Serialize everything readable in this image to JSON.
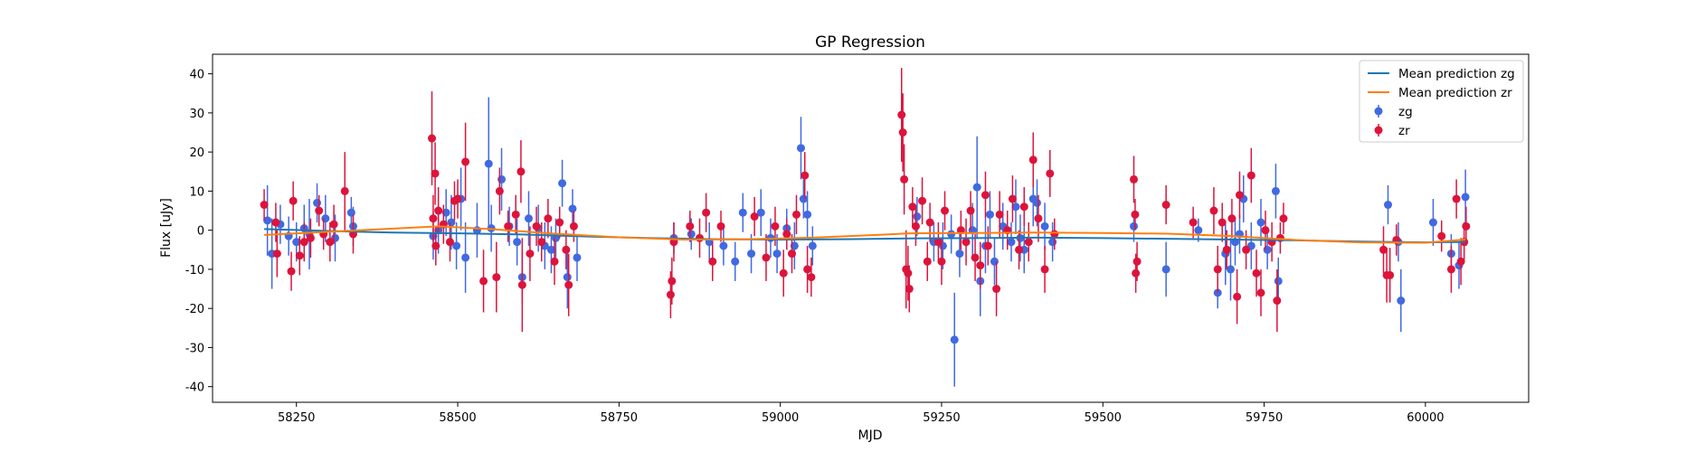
{
  "chart_data": {
    "type": "scatter",
    "title": "GP Regression",
    "xlabel": "MJD",
    "ylabel": "Flux [uJy]",
    "xlim": [
      58120,
      60160
    ],
    "ylim": [
      -44,
      45
    ],
    "xticks": [
      58250,
      58500,
      58750,
      59000,
      59250,
      59500,
      59750,
      60000
    ],
    "yticks": [
      -40,
      -30,
      -20,
      -10,
      0,
      10,
      20,
      30,
      40
    ],
    "grid": false,
    "legend_position": "top-right",
    "legend": [
      {
        "label": "Mean prediction zg",
        "kind": "line",
        "color": "#1f77b4"
      },
      {
        "label": "Mean prediction zr",
        "kind": "line",
        "color": "#ff7f0e"
      },
      {
        "label": "zg",
        "kind": "errorbar",
        "color": "#4169e1"
      },
      {
        "label": "zr",
        "kind": "errorbar",
        "color": "#dc143c"
      }
    ],
    "lines": [
      {
        "name": "Mean prediction zg",
        "color": "#1f77b4",
        "x": [
          58200,
          58300,
          58400,
          58500,
          58600,
          58700,
          58800,
          58900,
          59000,
          59100,
          59200,
          59300,
          59400,
          59500,
          59600,
          59700,
          59800,
          59900,
          60000,
          60062
        ],
        "y": [
          0.3,
          -0.2,
          -0.6,
          -0.8,
          -1.1,
          -1.6,
          -2.0,
          -2.3,
          -2.4,
          -2.3,
          -2.1,
          -2.0,
          -1.9,
          -2.0,
          -2.2,
          -2.4,
          -2.6,
          -2.9,
          -3.1,
          -3.0
        ]
      },
      {
        "name": "Mean prediction zr",
        "color": "#ff7f0e",
        "x": [
          58200,
          58300,
          58400,
          58470,
          58550,
          58650,
          58750,
          58850,
          58950,
          59050,
          59150,
          59200,
          59300,
          59400,
          59500,
          59600,
          59700,
          59800,
          59900,
          60000,
          60062
        ],
        "y": [
          -1.2,
          -0.4,
          0.4,
          1.0,
          0.3,
          -0.9,
          -1.8,
          -2.4,
          -2.3,
          -1.9,
          -1.2,
          -0.8,
          -0.7,
          -0.6,
          -0.7,
          -0.9,
          -1.5,
          -2.5,
          -3.1,
          -3.2,
          -2.4
        ]
      }
    ],
    "series": [
      {
        "name": "zg",
        "color": "#4169e1",
        "points": [
          [
            58205,
            2.5,
            9
          ],
          [
            58212,
            -6,
            9
          ],
          [
            58225,
            1.5,
            5
          ],
          [
            58238,
            -1.5,
            5
          ],
          [
            58250,
            -3,
            5
          ],
          [
            58262,
            0.5,
            6
          ],
          [
            58270,
            -1,
            9
          ],
          [
            58282,
            7,
            5
          ],
          [
            58295,
            3,
            6
          ],
          [
            58310,
            -2,
            6
          ],
          [
            58335,
            4.5,
            4
          ],
          [
            58338,
            1,
            5
          ],
          [
            58462,
            -1.5,
            6
          ],
          [
            58470,
            0,
            6
          ],
          [
            58482,
            4.5,
            6
          ],
          [
            58490,
            2,
            7
          ],
          [
            58498,
            -4,
            6
          ],
          [
            58505,
            8,
            8
          ],
          [
            58512,
            -7,
            9
          ],
          [
            58530,
            0,
            7
          ],
          [
            58548,
            17,
            17
          ],
          [
            58552,
            0.5,
            6
          ],
          [
            58568,
            13,
            8
          ],
          [
            58580,
            1,
            5
          ],
          [
            58592,
            -3,
            6
          ],
          [
            58600,
            -12,
            7
          ],
          [
            58610,
            3,
            7
          ],
          [
            58625,
            0.5,
            6
          ],
          [
            58635,
            -4,
            6
          ],
          [
            58645,
            -5,
            6
          ],
          [
            58652,
            -2,
            5
          ],
          [
            58662,
            12,
            6
          ],
          [
            58670,
            -12,
            8
          ],
          [
            58678,
            5.5,
            5
          ],
          [
            58685,
            -7,
            6
          ],
          [
            58835,
            -2,
            4
          ],
          [
            58862,
            -1,
            4
          ],
          [
            58890,
            -3,
            5
          ],
          [
            58912,
            -4,
            5
          ],
          [
            58930,
            -8,
            5
          ],
          [
            58942,
            4.5,
            5
          ],
          [
            58955,
            -6,
            5
          ],
          [
            58970,
            4.5,
            6
          ],
          [
            58985,
            -2,
            5
          ],
          [
            58995,
            -6,
            5
          ],
          [
            59010,
            0.5,
            5
          ],
          [
            59022,
            -4,
            6
          ],
          [
            59032,
            21,
            8
          ],
          [
            59036,
            8,
            5
          ],
          [
            59042,
            4,
            6
          ],
          [
            59050,
            -4,
            5
          ],
          [
            59212,
            3.5,
            5
          ],
          [
            59238,
            -3,
            5
          ],
          [
            59252,
            -4,
            6
          ],
          [
            59265,
            -1,
            5
          ],
          [
            59270,
            -28,
            12
          ],
          [
            59278,
            -6,
            6
          ],
          [
            59298,
            0,
            7
          ],
          [
            59305,
            11,
            13
          ],
          [
            59310,
            -13,
            9
          ],
          [
            59318,
            -4,
            7
          ],
          [
            59325,
            4,
            6
          ],
          [
            59332,
            -8,
            6
          ],
          [
            59345,
            1,
            6
          ],
          [
            59358,
            -3,
            5
          ],
          [
            59365,
            6,
            7
          ],
          [
            59372,
            -2,
            6
          ],
          [
            59378,
            -5,
            6
          ],
          [
            59392,
            8,
            7
          ],
          [
            59398,
            7,
            6
          ],
          [
            59410,
            1,
            6
          ],
          [
            59422,
            -3,
            5
          ],
          [
            59548,
            1,
            4
          ],
          [
            59598,
            -10,
            7
          ],
          [
            59648,
            0,
            3
          ],
          [
            59678,
            -16,
            4
          ],
          [
            59690,
            -6,
            8
          ],
          [
            59698,
            -10,
            8
          ],
          [
            59705,
            -3,
            6
          ],
          [
            59712,
            -1,
            5
          ],
          [
            59718,
            8,
            6
          ],
          [
            59730,
            -4,
            6
          ],
          [
            59745,
            2,
            6
          ],
          [
            59755,
            -5,
            5
          ],
          [
            59768,
            10,
            7
          ],
          [
            59772,
            -13,
            6
          ],
          [
            59942,
            6.5,
            5
          ],
          [
            59958,
            -3,
            5
          ],
          [
            59962,
            -18,
            8
          ],
          [
            60012,
            2,
            6
          ],
          [
            60040,
            -6,
            5
          ],
          [
            60052,
            -9,
            6
          ],
          [
            60062,
            8.5,
            7
          ]
        ]
      },
      {
        "name": "zr",
        "color": "#dc143c",
        "points": [
          [
            58200,
            6.5,
            4
          ],
          [
            58218,
            2,
            5
          ],
          [
            58220,
            -6,
            6
          ],
          [
            58242,
            -10.5,
            5
          ],
          [
            58245,
            7.5,
            5
          ],
          [
            58255,
            -6.5,
            5
          ],
          [
            58262,
            -3,
            5
          ],
          [
            58272,
            -2,
            5
          ],
          [
            58285,
            5,
            4
          ],
          [
            58292,
            -1,
            4
          ],
          [
            58302,
            -3,
            5
          ],
          [
            58308,
            1.5,
            5
          ],
          [
            58325,
            10,
            10
          ],
          [
            58338,
            -1,
            5
          ],
          [
            58460,
            23.5,
            12
          ],
          [
            58462,
            3,
            6
          ],
          [
            58465,
            14.5,
            8
          ],
          [
            58466,
            -4,
            5
          ],
          [
            58470,
            5,
            6
          ],
          [
            58478,
            1.5,
            5
          ],
          [
            58488,
            -3,
            5
          ],
          [
            58495,
            7.5,
            5
          ],
          [
            58500,
            8,
            5
          ],
          [
            58512,
            17.5,
            10
          ],
          [
            58540,
            -13,
            8
          ],
          [
            58560,
            -12,
            9
          ],
          [
            58565,
            10,
            6
          ],
          [
            58578,
            1,
            4
          ],
          [
            58590,
            4,
            5
          ],
          [
            58598,
            15,
            8
          ],
          [
            58600,
            -14,
            12
          ],
          [
            58612,
            -6,
            7
          ],
          [
            58622,
            1,
            5
          ],
          [
            58630,
            -3,
            5
          ],
          [
            58640,
            3,
            5
          ],
          [
            58650,
            -8,
            6
          ],
          [
            58658,
            2,
            4
          ],
          [
            58668,
            -5,
            5
          ],
          [
            58672,
            -14,
            8
          ],
          [
            58680,
            1,
            4
          ],
          [
            58830,
            -16.5,
            6
          ],
          [
            58832,
            -13,
            6
          ],
          [
            58835,
            -3,
            5
          ],
          [
            58860,
            1,
            4
          ],
          [
            58875,
            -2,
            5
          ],
          [
            58885,
            4.5,
            5
          ],
          [
            58895,
            -8,
            5
          ],
          [
            58908,
            1,
            4
          ],
          [
            58960,
            3.5,
            5
          ],
          [
            58978,
            -7,
            6
          ],
          [
            58992,
            1,
            5
          ],
          [
            59005,
            -11,
            6
          ],
          [
            59010,
            -1,
            4
          ],
          [
            59018,
            -6,
            5
          ],
          [
            59025,
            4,
            5
          ],
          [
            59038,
            14,
            6
          ],
          [
            59042,
            -10,
            6
          ],
          [
            59048,
            -12,
            5
          ],
          [
            59188,
            29.5,
            12
          ],
          [
            59190,
            25,
            10
          ],
          [
            59192,
            13,
            9
          ],
          [
            59195,
            -10,
            10
          ],
          [
            59198,
            -11,
            7
          ],
          [
            59200,
            -15,
            6
          ],
          [
            59205,
            6,
            5
          ],
          [
            59210,
            1,
            5
          ],
          [
            59220,
            7.5,
            6
          ],
          [
            59228,
            -8,
            5
          ],
          [
            59232,
            2,
            5
          ],
          [
            59245,
            -3,
            5
          ],
          [
            59250,
            -8,
            6
          ],
          [
            59255,
            5,
            5
          ],
          [
            59280,
            0,
            5
          ],
          [
            59288,
            -3,
            6
          ],
          [
            59295,
            5,
            5
          ],
          [
            59302,
            -7,
            6
          ],
          [
            59310,
            -9,
            6
          ],
          [
            59318,
            9,
            6
          ],
          [
            59322,
            -4,
            5
          ],
          [
            59335,
            -15,
            7
          ],
          [
            59340,
            4,
            6
          ],
          [
            59352,
            0,
            5
          ],
          [
            59360,
            8,
            6
          ],
          [
            59370,
            -5,
            5
          ],
          [
            59378,
            6,
            5
          ],
          [
            59385,
            -3,
            5
          ],
          [
            59392,
            18,
            7
          ],
          [
            59400,
            3,
            6
          ],
          [
            59410,
            -10,
            6
          ],
          [
            59418,
            14.5,
            6
          ],
          [
            59425,
            -1,
            4
          ],
          [
            59548,
            13,
            6
          ],
          [
            59550,
            4,
            4
          ],
          [
            59551,
            -11,
            5
          ],
          [
            59553,
            -8,
            5
          ],
          [
            59598,
            6.5,
            5
          ],
          [
            59640,
            2,
            4
          ],
          [
            59672,
            5,
            6
          ],
          [
            59678,
            -10,
            6
          ],
          [
            59685,
            2,
            5
          ],
          [
            59692,
            -5,
            5
          ],
          [
            59700,
            3,
            5
          ],
          [
            59708,
            -17,
            7
          ],
          [
            59712,
            9,
            6
          ],
          [
            59722,
            -5,
            5
          ],
          [
            59730,
            14,
            7
          ],
          [
            59738,
            -11,
            6
          ],
          [
            59745,
            -16,
            6
          ],
          [
            59752,
            0,
            5
          ],
          [
            59762,
            -3,
            5
          ],
          [
            59770,
            -18,
            8
          ],
          [
            59775,
            -2,
            4
          ],
          [
            59780,
            3,
            4
          ],
          [
            59935,
            -5,
            6
          ],
          [
            59940,
            -11.5,
            7
          ],
          [
            59945,
            -11.5,
            7
          ],
          [
            59955,
            -2.5,
            4
          ],
          [
            60025,
            -1.5,
            4
          ],
          [
            60040,
            -10,
            6
          ],
          [
            60048,
            8,
            5
          ],
          [
            60055,
            -8,
            6
          ],
          [
            60060,
            -3,
            5
          ],
          [
            60063,
            1,
            5
          ]
        ]
      }
    ]
  }
}
